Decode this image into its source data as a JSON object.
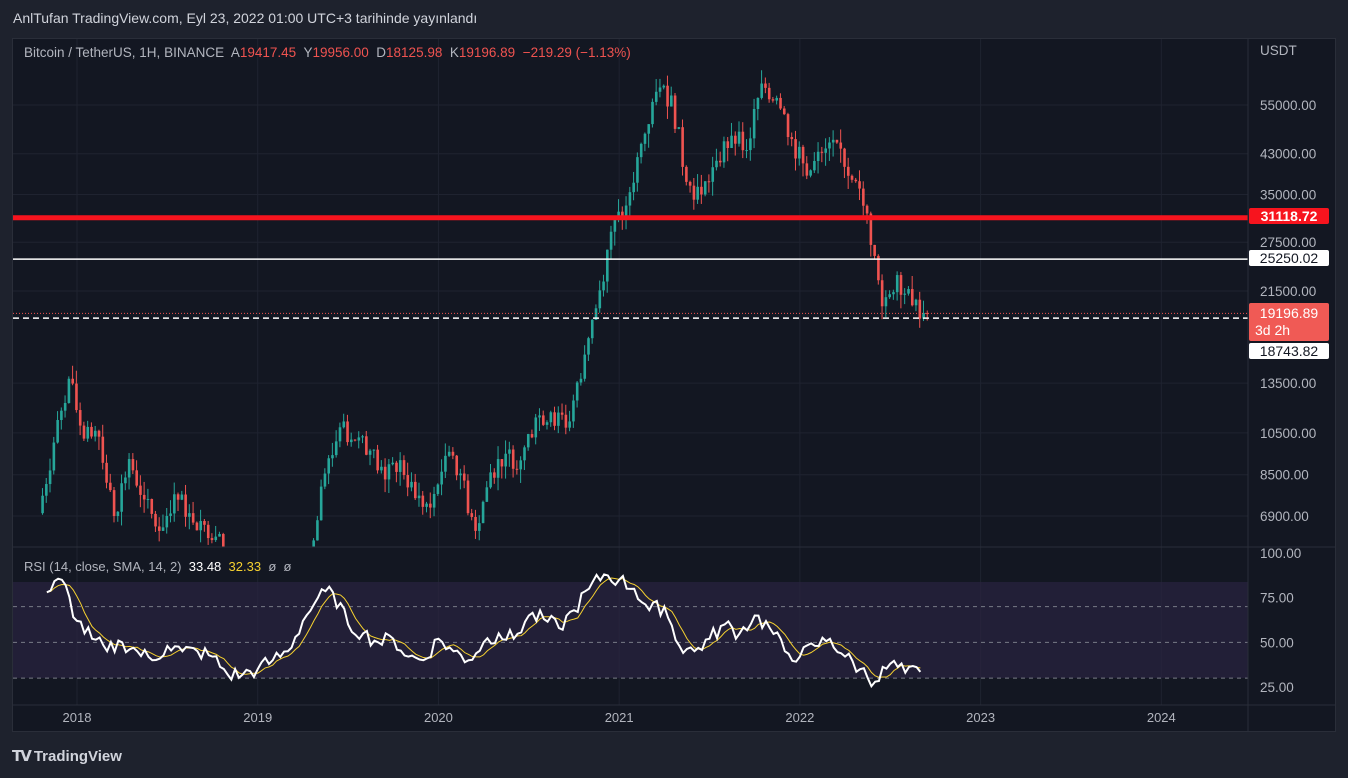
{
  "published": "AnlTufan TradingView.com, Eyl 23, 2022 01:00 UTC+3 tarihinde yayınlandı",
  "legend": {
    "symbol": "Bitcoin / TetherUS, 1H, BINANCE",
    "open_label": "A",
    "open": "19417.45",
    "high_label": "Y",
    "high": "19956.00",
    "low_label": "D",
    "low": "18125.98",
    "close_label": "K",
    "close": "19196.89",
    "change": "−219.29 (−1.13%)"
  },
  "rsi_legend": {
    "label": "RSI (14, close, SMA, 14, 2)",
    "rsi": "33.48",
    "sma": "32.33",
    "extra1": "ø",
    "extra2": "ø"
  },
  "logo": "TradingView",
  "colors": {
    "up": "#26a69a",
    "down": "#ef5350",
    "resistance": "#f7141e",
    "support": "#ffffff",
    "rsi": "#ffffff",
    "rsi_sma": "#f5d130"
  },
  "chart_data": [
    {
      "type": "candlestick",
      "title": "Bitcoin / TetherUS",
      "scale": "log",
      "currency": "USDT",
      "price_ticks": [
        "55000.00",
        "43000.00",
        "35000.00",
        "27500.00",
        "21500.00",
        "13500.00",
        "10500.00",
        "8500.00",
        "6900.00"
      ],
      "x_ticks": [
        "2018",
        "2019",
        "2020",
        "2021",
        "2022",
        "2023",
        "2024"
      ],
      "start_month": "2017-11",
      "monthly_open_close": [
        [
          7000,
          10000
        ],
        [
          10000,
          13800
        ],
        [
          13800,
          10200
        ],
        [
          10200,
          10300
        ],
        [
          10300,
          6900
        ],
        [
          6900,
          9200
        ],
        [
          9200,
          7500
        ],
        [
          7500,
          6400
        ],
        [
          6400,
          7700
        ],
        [
          7700,
          7000
        ],
        [
          7000,
          6600
        ],
        [
          6600,
          6300
        ],
        [
          6300,
          4000
        ],
        [
          4000,
          3700
        ],
        [
          3700,
          3450
        ],
        [
          3450,
          3800
        ],
        [
          3800,
          4100
        ],
        [
          4100,
          5300
        ],
        [
          5300,
          8550
        ],
        [
          8550,
          10800
        ],
        [
          10800,
          10100
        ],
        [
          10100,
          9600
        ],
        [
          9600,
          8300
        ],
        [
          8300,
          9150
        ],
        [
          9150,
          7550
        ],
        [
          7550,
          7200
        ],
        [
          7200,
          9350
        ],
        [
          9350,
          8550
        ],
        [
          8550,
          6400
        ],
        [
          6400,
          8600
        ],
        [
          8600,
          9450
        ],
        [
          9450,
          9140
        ],
        [
          9140,
          11350
        ],
        [
          11350,
          11650
        ],
        [
          11650,
          10780
        ],
        [
          10780,
          13800
        ],
        [
          13800,
          19700
        ],
        [
          19700,
          29000
        ],
        [
          29000,
          33100
        ],
        [
          33100,
          45200
        ],
        [
          45200,
          58800
        ],
        [
          58800,
          57700
        ],
        [
          57700,
          37300
        ],
        [
          37300,
          35000
        ],
        [
          35000,
          41500
        ],
        [
          41500,
          47100
        ],
        [
          47100,
          43800
        ],
        [
          43800,
          61300
        ],
        [
          61300,
          57000
        ],
        [
          57000,
          46300
        ],
        [
          46300,
          38500
        ],
        [
          38500,
          43200
        ],
        [
          43200,
          45500
        ],
        [
          45500,
          37700
        ],
        [
          37700,
          31800
        ],
        [
          31800,
          19900
        ],
        [
          19900,
          23300
        ],
        [
          23300,
          20000
        ],
        [
          20000,
          19197
        ]
      ],
      "horizontal_levels": [
        {
          "label": "31118.72",
          "style": "thick-red"
        },
        {
          "label": "25250.02",
          "style": "white"
        },
        {
          "label": "18743.82",
          "style": "white-dashed"
        }
      ],
      "last_price": {
        "label": "19196.89",
        "countdown": "3d 2h"
      }
    },
    {
      "type": "line",
      "title": "RSI (14, close, SMA, 14, 2)",
      "ylim": [
        20,
        100
      ],
      "y_ticks": [
        "100.00",
        "75.00",
        "50.00",
        "25.00"
      ],
      "bands": [
        30,
        50,
        70
      ],
      "monthly_rsi": [
        78,
        85,
        62,
        52,
        45,
        50,
        45,
        40,
        48,
        45,
        45,
        42,
        32,
        32,
        35,
        40,
        45,
        62,
        75,
        78,
        60,
        55,
        50,
        52,
        42,
        40,
        52,
        45,
        40,
        50,
        55,
        52,
        65,
        63,
        58,
        68,
        80,
        88,
        85,
        80,
        68,
        70,
        48,
        45,
        52,
        60,
        55,
        65,
        58,
        45,
        42,
        48,
        52,
        42,
        35,
        28,
        38,
        33,
        33.48
      ],
      "sma_last": 32.33
    }
  ]
}
